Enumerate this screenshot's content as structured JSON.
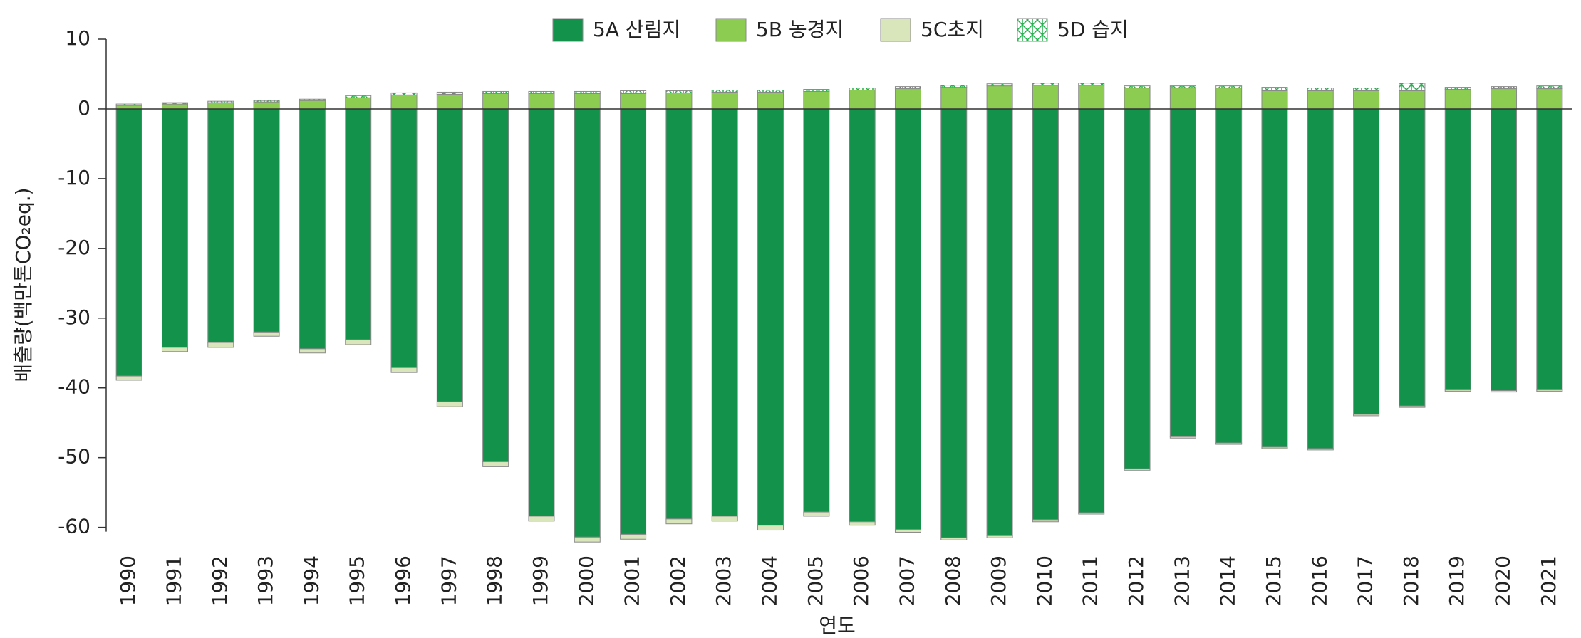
{
  "chart_data": {
    "type": "stacked_bar",
    "y_label": "배출량(백만톤CO₂eq.)",
    "x_label": "연도",
    "categories": [
      "1990",
      "1991",
      "1992",
      "1993",
      "1994",
      "1995",
      "1996",
      "1997",
      "1998",
      "1999",
      "2000",
      "2001",
      "2002",
      "2003",
      "2004",
      "2005",
      "2006",
      "2007",
      "2008",
      "2009",
      "2010",
      "2011",
      "2012",
      "2013",
      "2014",
      "2015",
      "2016",
      "2017",
      "2018",
      "2019",
      "2020",
      "2021"
    ],
    "series": [
      {
        "name": "5A 산림지",
        "color": "#12924a",
        "values": [
          -38.3,
          -34.2,
          -33.5,
          -32.0,
          -34.4,
          -33.1,
          -37.1,
          -42.0,
          -50.6,
          -58.4,
          -61.4,
          -61.0,
          -58.8,
          -58.4,
          -59.7,
          -57.8,
          -59.2,
          -60.3,
          -61.5,
          -61.2,
          -58.9,
          -57.9,
          -51.6,
          -47.0,
          -47.9,
          -48.5,
          -48.7,
          -43.8,
          -42.6,
          -40.3,
          -40.4,
          -40.3
        ]
      },
      {
        "name": "5B 농경지",
        "color": "#8ccc50",
        "values": [
          0.5,
          0.7,
          0.9,
          1.0,
          1.2,
          1.6,
          2.0,
          2.1,
          2.2,
          2.2,
          2.2,
          2.2,
          2.3,
          2.4,
          2.4,
          2.5,
          2.7,
          2.9,
          3.1,
          3.3,
          3.4,
          3.4,
          3.0,
          3.0,
          3.0,
          2.6,
          2.6,
          2.6,
          2.6,
          2.8,
          2.9,
          2.9
        ]
      },
      {
        "name": "5C초지",
        "color": "#d9e6bc",
        "values": [
          -0.6,
          -0.6,
          -0.7,
          -0.6,
          -0.6,
          -0.7,
          -0.7,
          -0.7,
          -0.7,
          -0.7,
          -0.7,
          -0.7,
          -0.7,
          -0.7,
          -0.7,
          -0.6,
          -0.5,
          -0.4,
          -0.3,
          -0.3,
          -0.3,
          -0.2,
          -0.2,
          -0.2,
          -0.2,
          -0.2,
          -0.2,
          -0.2,
          -0.2,
          -0.2,
          -0.2,
          -0.2
        ]
      },
      {
        "name": "5D 습지",
        "color": "#22b14c",
        "values": [
          0.2,
          0.2,
          0.2,
          0.2,
          0.2,
          0.3,
          0.3,
          0.3,
          0.3,
          0.3,
          0.3,
          0.4,
          0.3,
          0.3,
          0.3,
          0.3,
          0.3,
          0.3,
          0.3,
          0.3,
          0.3,
          0.3,
          0.3,
          0.3,
          0.3,
          0.5,
          0.4,
          0.4,
          1.1,
          0.3,
          0.3,
          0.4
        ]
      }
    ],
    "ylim": [
      -63,
      10
    ],
    "yticks": [
      10,
      0,
      -10,
      -20,
      -30,
      -40,
      -50,
      -60
    ]
  }
}
